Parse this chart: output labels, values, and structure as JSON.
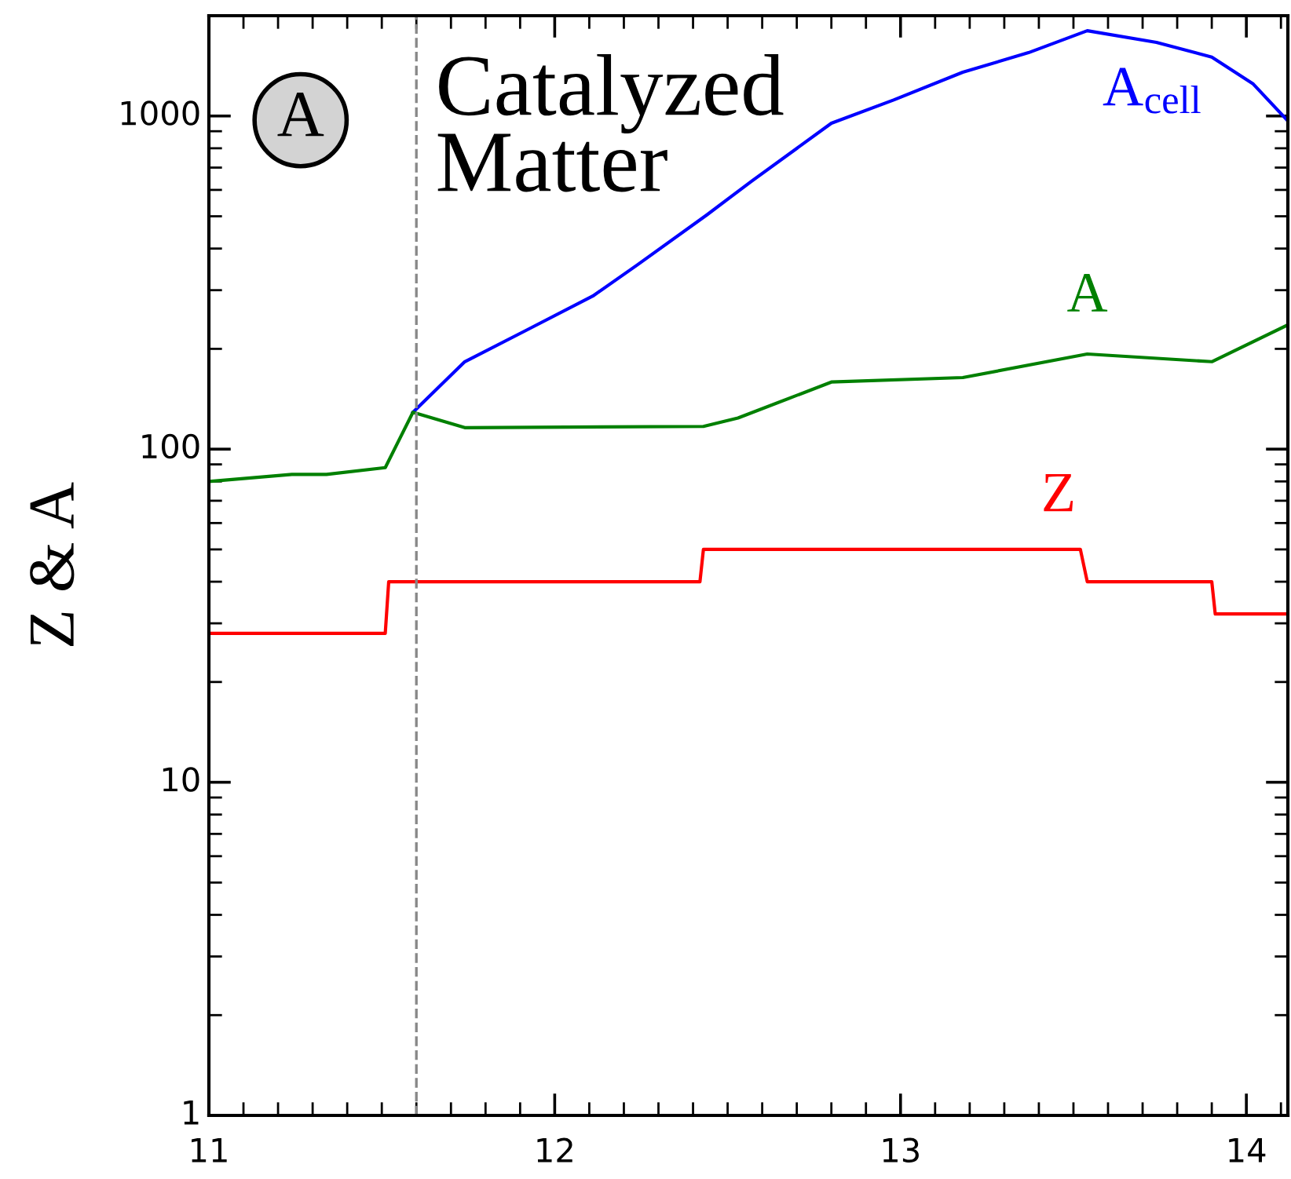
{
  "chart_data": {
    "type": "line",
    "ylabel": "Z & A",
    "annotations": [
      "A",
      "Catalyzed\nMatter"
    ],
    "log": "y",
    "xlim": [
      11,
      14.12
    ],
    "xticks": [
      11,
      12,
      13,
      14
    ],
    "ylim": [
      1,
      2000
    ],
    "yticks": [
      1,
      10,
      100,
      1000
    ],
    "grid": false,
    "legend": false,
    "marker": "none",
    "line_style": "solid",
    "ref_lines": [
      {
        "axis": "x",
        "value": 11.6,
        "color": "#888888",
        "line_style": "dashed"
      }
    ],
    "series": [
      {
        "name": "A$_{cell}$",
        "color": "#0000ff",
        "x": [
          11.59,
          11.74,
          11.92,
          12.11,
          12.24,
          12.44,
          12.57,
          12.8,
          12.98,
          13.18,
          13.37,
          13.54,
          13.74,
          13.9,
          14.02,
          14.12
        ],
        "values": [
          129,
          183,
          228,
          288,
          358,
          505,
          638,
          951,
          1117,
          1353,
          1549,
          1803,
          1663,
          1503,
          1247,
          967
        ]
      },
      {
        "name": "A",
        "color": "#008000",
        "x": [
          11.0,
          11.24,
          11.34,
          11.51,
          11.59,
          11.74,
          12.43,
          12.53,
          12.8,
          13.18,
          13.54,
          13.9,
          14.12
        ],
        "values": [
          80,
          84,
          84,
          88,
          129,
          116,
          117,
          124,
          159,
          164,
          193,
          183,
          236
        ]
      },
      {
        "name": "Z",
        "color": "#ff0000",
        "x": [
          11.0,
          11.51,
          11.52,
          12.42,
          12.43,
          13.52,
          13.54,
          13.9,
          13.91,
          14.12
        ],
        "values": [
          28,
          28,
          40,
          40,
          50,
          50,
          40,
          40,
          32,
          32
        ]
      }
    ]
  }
}
